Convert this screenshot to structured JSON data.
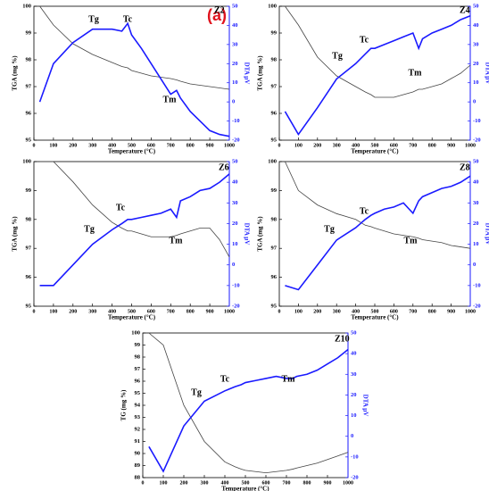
{
  "figure_label": "(a)",
  "chart_data": [
    {
      "type": "line",
      "panel_label": "Z2",
      "annotations": [
        "Tg",
        "Tc",
        "Tm"
      ],
      "xlabel": "Temperature (°C)",
      "ylabel": "TGA (mg %)",
      "y2label": "DTA μV",
      "x": [
        30,
        100,
        200,
        300,
        400,
        450,
        480,
        500,
        550,
        600,
        650,
        700,
        730,
        750,
        800,
        850,
        900,
        950,
        1000
      ],
      "series": [
        {
          "color": "#444444",
          "values": [
            100,
            99.3,
            98.6,
            98.2,
            97.9,
            97.75,
            97.7,
            97.6,
            97.5,
            97.4,
            97.35,
            97.3,
            97.25,
            97.2,
            97.1,
            97.05,
            97.0,
            96.95,
            96.9
          ]
        },
        {
          "color": "#1a1aff",
          "axis": "y2",
          "values": [
            0,
            20,
            31,
            38,
            38,
            37,
            41,
            35,
            28,
            20,
            12,
            4,
            6,
            2,
            -5,
            -10,
            -15,
            -17,
            -18
          ]
        }
      ],
      "xlim": [
        0,
        1000
      ],
      "xticks": [
        0,
        100,
        200,
        300,
        400,
        500,
        600,
        700,
        800,
        900,
        1000
      ],
      "ylim": [
        95,
        100
      ],
      "yticks": [
        95,
        96,
        97,
        98,
        99,
        100
      ],
      "y2lim": [
        -20,
        50
      ],
      "y2ticks": [
        -20,
        -10,
        0,
        10,
        20,
        30,
        40,
        50
      ]
    },
    {
      "type": "line",
      "panel_label": "Z4",
      "annotations": [
        "Tg",
        "Tc",
        "Tm"
      ],
      "xlabel": "Temperature (°C)",
      "ylabel": "TGA (mg %)",
      "y2label": "DTA μV",
      "x": [
        30,
        100,
        200,
        300,
        400,
        450,
        480,
        500,
        550,
        600,
        650,
        700,
        730,
        750,
        800,
        850,
        900,
        950,
        1000
      ],
      "series": [
        {
          "color": "#444444",
          "values": [
            100,
            99.3,
            98.1,
            97.4,
            97.0,
            96.8,
            96.7,
            96.6,
            96.6,
            96.6,
            96.7,
            96.8,
            96.9,
            96.9,
            97.0,
            97.1,
            97.3,
            97.5,
            97.8
          ]
        },
        {
          "color": "#1a1aff",
          "axis": "y2",
          "values": [
            -5,
            -17,
            -3,
            12,
            20,
            25,
            28,
            28,
            30,
            32,
            34,
            36,
            28,
            33,
            36,
            38,
            40,
            43,
            45
          ]
        }
      ],
      "xlim": [
        0,
        1000
      ],
      "xticks": [
        0,
        100,
        200,
        300,
        400,
        500,
        600,
        700,
        800,
        900,
        1000
      ],
      "ylim": [
        95,
        100
      ],
      "yticks": [
        95,
        96,
        97,
        98,
        99,
        100
      ],
      "y2lim": [
        -20,
        50
      ],
      "y2ticks": [
        -20,
        -10,
        0,
        10,
        20,
        30,
        40,
        50
      ]
    },
    {
      "type": "line",
      "panel_label": "Z6",
      "annotations": [
        "Tg",
        "Tc",
        "Tm"
      ],
      "xlabel": "Temperature (°C)",
      "ylabel": "TGA (mg %)",
      "y2label": "DTA μV",
      "x": [
        30,
        100,
        200,
        300,
        400,
        450,
        480,
        500,
        550,
        600,
        650,
        700,
        730,
        750,
        800,
        850,
        900,
        950,
        1000
      ],
      "series": [
        {
          "color": "#444444",
          "values": [
            100,
            100,
            99.3,
            98.5,
            97.9,
            97.7,
            97.6,
            97.6,
            97.5,
            97.4,
            97.4,
            97.4,
            97.45,
            97.5,
            97.6,
            97.7,
            97.7,
            97.3,
            96.7
          ]
        },
        {
          "color": "#1a1aff",
          "axis": "y2",
          "values": [
            -10,
            -10,
            0,
            10,
            17,
            20,
            22,
            22,
            23,
            24,
            25,
            27,
            23,
            31,
            33,
            36,
            37,
            40,
            44
          ]
        }
      ],
      "xlim": [
        0,
        1000
      ],
      "xticks": [
        0,
        100,
        200,
        300,
        400,
        500,
        600,
        700,
        800,
        900,
        1000
      ],
      "ylim": [
        95,
        100
      ],
      "yticks": [
        95,
        96,
        97,
        98,
        99,
        100
      ],
      "y2lim": [
        -20,
        50
      ],
      "y2ticks": [
        -20,
        -10,
        0,
        10,
        20,
        30,
        40,
        50
      ]
    },
    {
      "type": "line",
      "panel_label": "Z8",
      "annotations": [
        "Tg",
        "Tc",
        "Tm"
      ],
      "xlabel": "Temperature (°C)",
      "ylabel": "TGA (mg %)",
      "y2label": "DTA μV",
      "x": [
        30,
        100,
        200,
        300,
        400,
        450,
        480,
        500,
        550,
        600,
        650,
        700,
        730,
        750,
        800,
        850,
        900,
        950,
        1000
      ],
      "series": [
        {
          "color": "#444444",
          "values": [
            100,
            99.0,
            98.5,
            98.2,
            98.0,
            97.8,
            97.75,
            97.7,
            97.6,
            97.5,
            97.45,
            97.4,
            97.35,
            97.3,
            97.25,
            97.2,
            97.1,
            97.05,
            97.0
          ]
        },
        {
          "color": "#1a1aff",
          "axis": "y2",
          "values": [
            -10,
            -12,
            0,
            12,
            18,
            22,
            24,
            25,
            27,
            28,
            30,
            25,
            31,
            33,
            35,
            37,
            38,
            40,
            43
          ]
        }
      ],
      "xlim": [
        0,
        1000
      ],
      "xticks": [
        0,
        100,
        200,
        300,
        400,
        500,
        600,
        700,
        800,
        900,
        1000
      ],
      "ylim": [
        95,
        100
      ],
      "yticks": [
        95,
        96,
        97,
        98,
        99,
        100
      ],
      "y2lim": [
        -20,
        50
      ],
      "y2ticks": [
        -20,
        -10,
        0,
        10,
        20,
        30,
        40,
        50
      ]
    },
    {
      "type": "line",
      "panel_label": "Z10",
      "annotations": [
        "Tg",
        "Tc",
        "Tm"
      ],
      "xlabel": "Temperature (°C)",
      "ylabel": "TG (mg %)",
      "y2label": "DTA μV",
      "x": [
        30,
        100,
        200,
        300,
        400,
        450,
        480,
        500,
        550,
        600,
        650,
        700,
        730,
        750,
        800,
        850,
        900,
        950,
        1000
      ],
      "series": [
        {
          "color": "#444444",
          "values": [
            100,
            99,
            94,
            91,
            89.3,
            88.9,
            88.7,
            88.6,
            88.5,
            88.4,
            88.5,
            88.6,
            88.7,
            88.8,
            89.0,
            89.2,
            89.5,
            89.8,
            90.1
          ]
        },
        {
          "color": "#1a1aff",
          "axis": "y2",
          "values": [
            -5,
            -17,
            5,
            17,
            22,
            24,
            25,
            26,
            27,
            28,
            29,
            28,
            28,
            29,
            30,
            32,
            35,
            38,
            42
          ]
        }
      ],
      "xlim": [
        0,
        1000
      ],
      "xticks": [
        0,
        100,
        200,
        300,
        400,
        500,
        600,
        700,
        800,
        900,
        1000
      ],
      "ylim": [
        88,
        100
      ],
      "yticks": [
        88,
        89,
        90,
        91,
        92,
        93,
        94,
        95,
        96,
        97,
        98,
        99,
        100
      ],
      "y2lim": [
        -20,
        50
      ],
      "y2ticks": [
        -20,
        -10,
        0,
        10,
        20,
        30,
        40,
        50
      ]
    }
  ]
}
